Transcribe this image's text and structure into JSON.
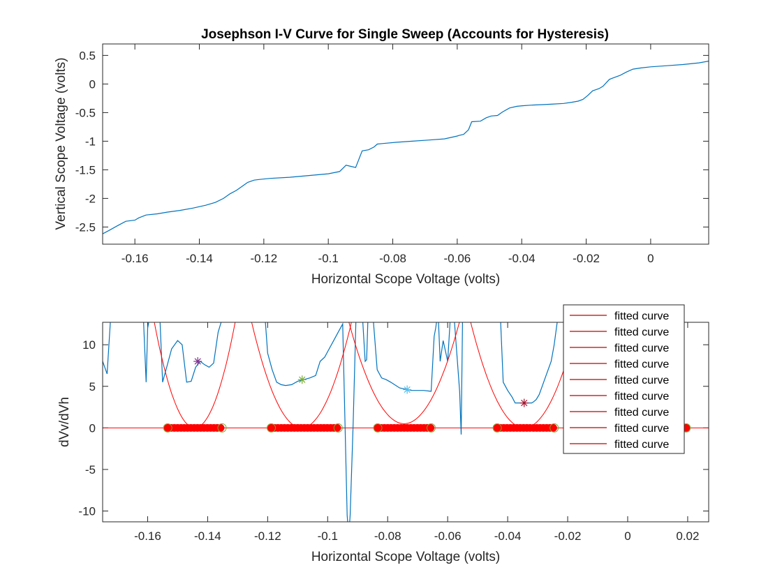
{
  "chart_data": [
    {
      "type": "line",
      "title": "Josephson I-V Curve for Single Sweep (Accounts for Hysteresis)",
      "xlabel": "Horizontal Scope Voltage (volts)",
      "ylabel": "Vertical Scope Voltage (volts)",
      "xlim": [
        -0.17,
        0.018
      ],
      "ylim": [
        -2.8,
        0.7
      ],
      "xticks": [
        -0.16,
        -0.14,
        -0.12,
        -0.1,
        -0.08,
        -0.06,
        -0.04,
        -0.02,
        0
      ],
      "xtick_labels": [
        "-0.16",
        "-0.14",
        "-0.12",
        "-0.1",
        "-0.08",
        "-0.06",
        "-0.04",
        "-0.02",
        "0"
      ],
      "yticks": [
        0.5,
        0,
        -0.5,
        -1,
        -1.5,
        -2,
        -2.5
      ],
      "ytick_labels": [
        "0.5",
        "0",
        "-0.5",
        "-1",
        "-1.5",
        "-2",
        "-2.5"
      ],
      "grid": false,
      "series": [
        {
          "color": "#0072BD",
          "x": [
            -0.17,
            -0.168,
            -0.1655,
            -0.1628,
            -0.16,
            -0.1588,
            -0.1565,
            -0.153,
            -0.15,
            -0.146,
            -0.142,
            -0.138,
            -0.135,
            -0.1325,
            -0.1305,
            -0.1285,
            -0.1265,
            -0.125,
            -0.123,
            -0.1215,
            -0.118,
            -0.112,
            -0.106,
            -0.1,
            -0.0965,
            -0.0945,
            -0.093,
            -0.0915,
            -0.0895,
            -0.0875,
            -0.0858,
            -0.0848,
            -0.083,
            -0.079,
            -0.074,
            -0.069,
            -0.064,
            -0.06,
            -0.0595,
            -0.058,
            -0.0565,
            -0.0555,
            -0.0528,
            -0.051,
            -0.0495,
            -0.0475,
            -0.046,
            -0.0438,
            -0.0415,
            -0.0398,
            -0.037,
            -0.033,
            -0.03,
            -0.027,
            -0.0245,
            -0.0225,
            -0.021,
            -0.0195,
            -0.018,
            -0.016,
            -0.0148,
            -0.0128,
            -0.0115,
            -0.0095,
            -0.0075,
            -0.0055,
            -0.003,
            0.0,
            0.005,
            0.01,
            0.015,
            0.018
          ],
          "y": [
            -2.62,
            -2.56,
            -2.48,
            -2.4,
            -2.38,
            -2.34,
            -2.29,
            -2.27,
            -2.24,
            -2.21,
            -2.17,
            -2.12,
            -2.07,
            -2.0,
            -1.92,
            -1.86,
            -1.78,
            -1.72,
            -1.68,
            -1.67,
            -1.65,
            -1.63,
            -1.6,
            -1.57,
            -1.53,
            -1.42,
            -1.44,
            -1.46,
            -1.17,
            -1.15,
            -1.1,
            -1.05,
            -1.04,
            -1.02,
            -1.0,
            -0.98,
            -0.96,
            -0.91,
            -0.9,
            -0.88,
            -0.8,
            -0.66,
            -0.65,
            -0.59,
            -0.56,
            -0.55,
            -0.49,
            -0.42,
            -0.39,
            -0.38,
            -0.37,
            -0.36,
            -0.35,
            -0.34,
            -0.32,
            -0.3,
            -0.27,
            -0.2,
            -0.12,
            -0.08,
            -0.04,
            0.08,
            0.11,
            0.15,
            0.21,
            0.26,
            0.28,
            0.3,
            0.32,
            0.34,
            0.37,
            0.4
          ]
        }
      ]
    },
    {
      "type": "line",
      "title": "",
      "xlabel": "Horizontal Scope Voltage (volts)",
      "ylabel": "dVv/dVh",
      "xlim": [
        -0.175,
        0.027
      ],
      "ylim": [
        -11.3,
        12.7
      ],
      "xticks": [
        -0.16,
        -0.14,
        -0.12,
        -0.1,
        -0.08,
        -0.06,
        -0.04,
        -0.02,
        0,
        0.02
      ],
      "xtick_labels": [
        "-0.16",
        "-0.14",
        "-0.12",
        "-0.1",
        "-0.08",
        "-0.06",
        "-0.04",
        "-0.02",
        "0",
        "0.02"
      ],
      "yticks": [
        10,
        5,
        0,
        -5,
        -10
      ],
      "ytick_labels": [
        "10",
        "5",
        "0",
        "-5",
        "-10"
      ],
      "grid": false,
      "legend_location": "top-right",
      "series": [
        {
          "color": "#0072BD",
          "x": [
            -0.175,
            -0.1735,
            -0.1722,
            -0.1712,
            -0.17,
            -0.166,
            -0.164,
            -0.1615,
            -0.1605,
            -0.16,
            -0.159,
            -0.158,
            -0.156,
            -0.155,
            -0.1545,
            -0.1535,
            -0.152,
            -0.15,
            -0.1485,
            -0.147,
            -0.1455,
            -0.144,
            -0.1425,
            -0.141,
            -0.1395,
            -0.138,
            -0.1365,
            -0.1355,
            -0.1345,
            -0.133,
            -0.128,
            -0.124,
            -0.122,
            -0.121,
            -0.12,
            -0.1185,
            -0.117,
            -0.1155,
            -0.114,
            -0.112,
            -0.11,
            -0.108,
            -0.106,
            -0.104,
            -0.1025,
            -0.101,
            -0.0995,
            -0.098,
            -0.0965,
            -0.095,
            -0.0935,
            -0.093,
            -0.0925,
            -0.0915,
            -0.0905,
            -0.0895,
            -0.0885,
            -0.0875,
            -0.087,
            -0.0865,
            -0.086,
            -0.085,
            -0.0835,
            -0.082,
            -0.0805,
            -0.079,
            -0.076,
            -0.072,
            -0.068,
            -0.0655,
            -0.0645,
            -0.064,
            -0.0632,
            -0.0625,
            -0.0615,
            -0.06,
            -0.059,
            -0.058,
            -0.056,
            -0.0555,
            -0.055,
            -0.054,
            -0.052,
            -0.05,
            -0.048,
            -0.046,
            -0.0445,
            -0.0435,
            -0.0425,
            -0.0415,
            -0.04,
            -0.0385,
            -0.0375,
            -0.036,
            -0.035,
            -0.034,
            -0.033,
            -0.032,
            -0.0315,
            -0.0305,
            -0.0295,
            -0.0285,
            -0.0275,
            -0.0255,
            -0.0245,
            -0.023,
            -0.019,
            -0.015,
            -0.01,
            -0.005,
            0.0,
            0.005,
            0.01,
            0.015,
            0.02,
            0.025,
            0.027
          ],
          "y": [
            8.0,
            6.5,
            14,
            14,
            14,
            14,
            14,
            14,
            5.5,
            12.0,
            14,
            14,
            14,
            5.5,
            6.2,
            7.5,
            9.5,
            10.5,
            10.0,
            5.5,
            5.6,
            7.3,
            8.0,
            7.6,
            7.3,
            7.8,
            11.5,
            12.7,
            14,
            14,
            14,
            14,
            14,
            14,
            9.0,
            7.0,
            5.5,
            5.2,
            5.1,
            5.2,
            5.6,
            5.8,
            6.0,
            6.3,
            8.0,
            8.5,
            9.5,
            10.5,
            11.5,
            12.5,
            -10.5,
            -13,
            -10.5,
            0.5,
            14,
            14,
            14,
            8.0,
            8.2,
            14,
            14,
            14,
            7.0,
            6.0,
            5.8,
            5.5,
            4.8,
            4.5,
            4.5,
            4.4,
            11.0,
            12.0,
            14,
            8.0,
            10.5,
            8.0,
            14,
            14,
            4.4,
            -0.8,
            14,
            14,
            14,
            14,
            14,
            14,
            14,
            14,
            14,
            5.5,
            4.5,
            3.7,
            3.0,
            3.0,
            3.0,
            3.0,
            3.0,
            3.0,
            3.1,
            3.4,
            4.0,
            5.0,
            6.0,
            8.0,
            10.0,
            14,
            14,
            14,
            14,
            14,
            14,
            14,
            14,
            14,
            14,
            14,
            14
          ]
        }
      ],
      "fits": [
        {
          "center": -0.1443,
          "min": 0,
          "curvature": 70000,
          "star_x": -0.1433,
          "star_y": 8.0,
          "star_color": "#7E2F8E"
        },
        {
          "center": -0.1087,
          "min": 0,
          "curvature": 46000,
          "star_x": -0.1085,
          "star_y": 5.8,
          "star_color": "#77AC30"
        },
        {
          "center": -0.0745,
          "min": 0.5,
          "curvature": 36000,
          "star_x": -0.0735,
          "star_y": 4.6,
          "star_color": "#4DBEEE"
        },
        {
          "center": -0.0345,
          "min": 0,
          "curvature": 40000,
          "star_x": -0.0345,
          "star_y": 3.0,
          "star_color": "#A2142F"
        }
      ],
      "zero_markers": [
        {
          "from": -0.1533,
          "to": -0.1352,
          "step": 0.0011
        },
        {
          "from": -0.1188,
          "to": -0.0965,
          "step": 0.0011
        },
        {
          "from": -0.0833,
          "to": -0.0655,
          "step": 0.0011
        },
        {
          "from": -0.0435,
          "to": -0.0245,
          "step": 0.0011
        },
        {
          "from": 0.0195,
          "to": 0.0195,
          "step": 0.0011
        }
      ],
      "zero_marker_green_x": [
        -0.1533,
        -0.1352,
        -0.1188,
        -0.0965,
        -0.0833,
        -0.0655,
        -0.0435,
        -0.0245,
        0.0195
      ],
      "legend": [
        "fitted curve",
        "fitted curve",
        "fitted curve",
        "fitted curve",
        "fitted curve",
        "fitted curve",
        "fitted curve",
        "fitted curve",
        "fitted curve"
      ],
      "fit_color": "#FF0000",
      "marker_color": "#FF0000",
      "marker_edge_green": "#77AC30"
    }
  ]
}
